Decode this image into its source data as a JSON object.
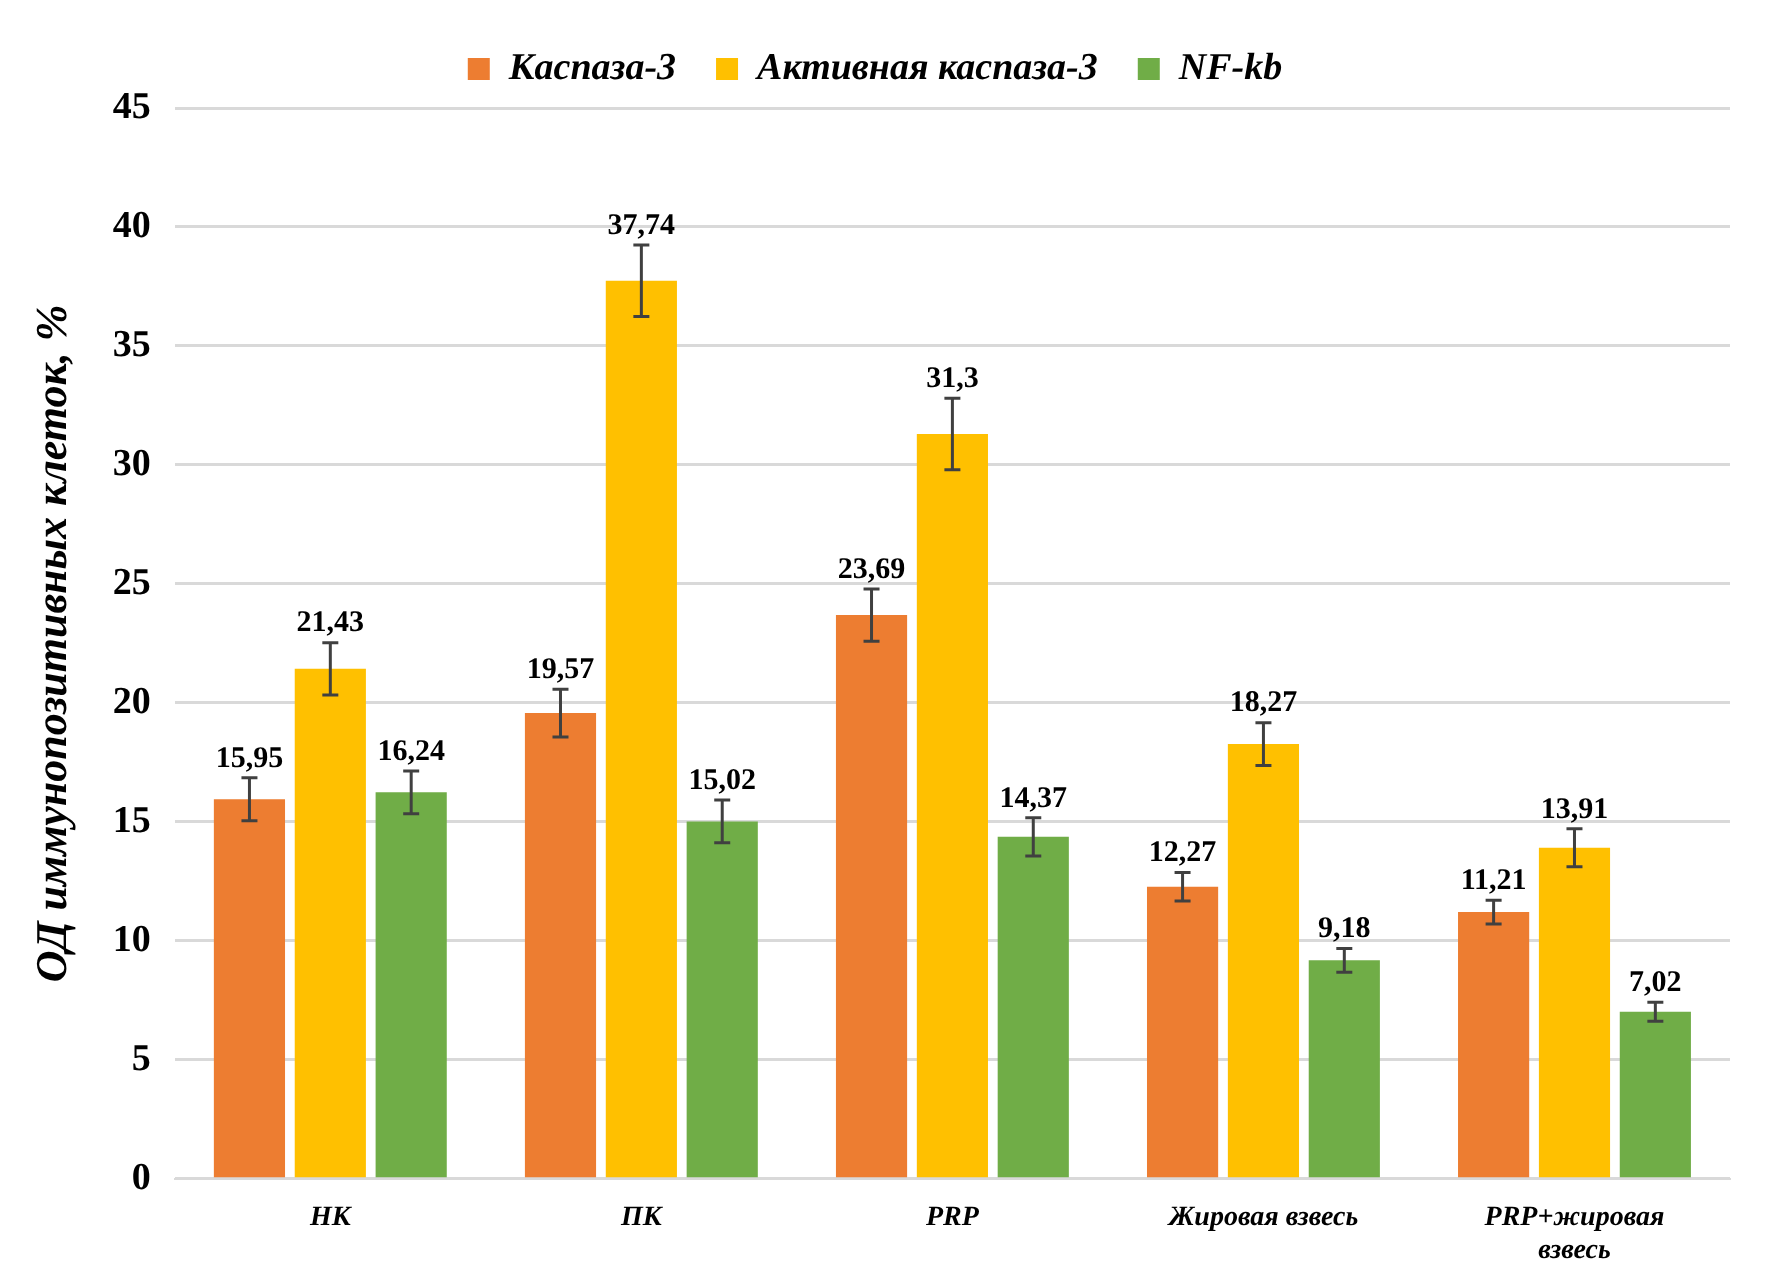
{
  "chart_data": {
    "type": "bar",
    "ylabel": "ОД иммунопозитивных клеток, %",
    "categories": [
      "НК",
      "ПК",
      "PRP",
      "Жировая взвесь",
      "PRP+жировая взвесь"
    ],
    "series": [
      {
        "name": "Каспаза-3",
        "color": "#ed7d31",
        "values": [
          15.95,
          19.57,
          23.69,
          12.27,
          11.21
        ],
        "errors": [
          0.9,
          1.0,
          1.1,
          0.6,
          0.5
        ],
        "value_labels": [
          "15,95",
          "19,57",
          "23,69",
          "12,27",
          "11,21"
        ]
      },
      {
        "name": "Активная каспаза-3",
        "color": "#ffc000",
        "values": [
          21.43,
          37.74,
          31.3,
          18.27,
          13.91
        ],
        "errors": [
          1.1,
          1.5,
          1.5,
          0.9,
          0.8
        ],
        "value_labels": [
          "21,43",
          "37,74",
          "31,3",
          "18,27",
          "13,91"
        ]
      },
      {
        "name": "NF-kb",
        "color": "#70ad47",
        "values": [
          16.24,
          15.02,
          14.37,
          9.18,
          7.02
        ],
        "errors": [
          0.9,
          0.9,
          0.8,
          0.5,
          0.4
        ],
        "value_labels": [
          "16,24",
          "15,02",
          "14,37",
          "9,18",
          "7,02"
        ]
      }
    ],
    "ylim": [
      0,
      45
    ],
    "yticks": [
      0,
      5,
      10,
      15,
      20,
      25,
      30,
      35,
      40,
      45
    ],
    "grid": "y",
    "legend": "top"
  }
}
